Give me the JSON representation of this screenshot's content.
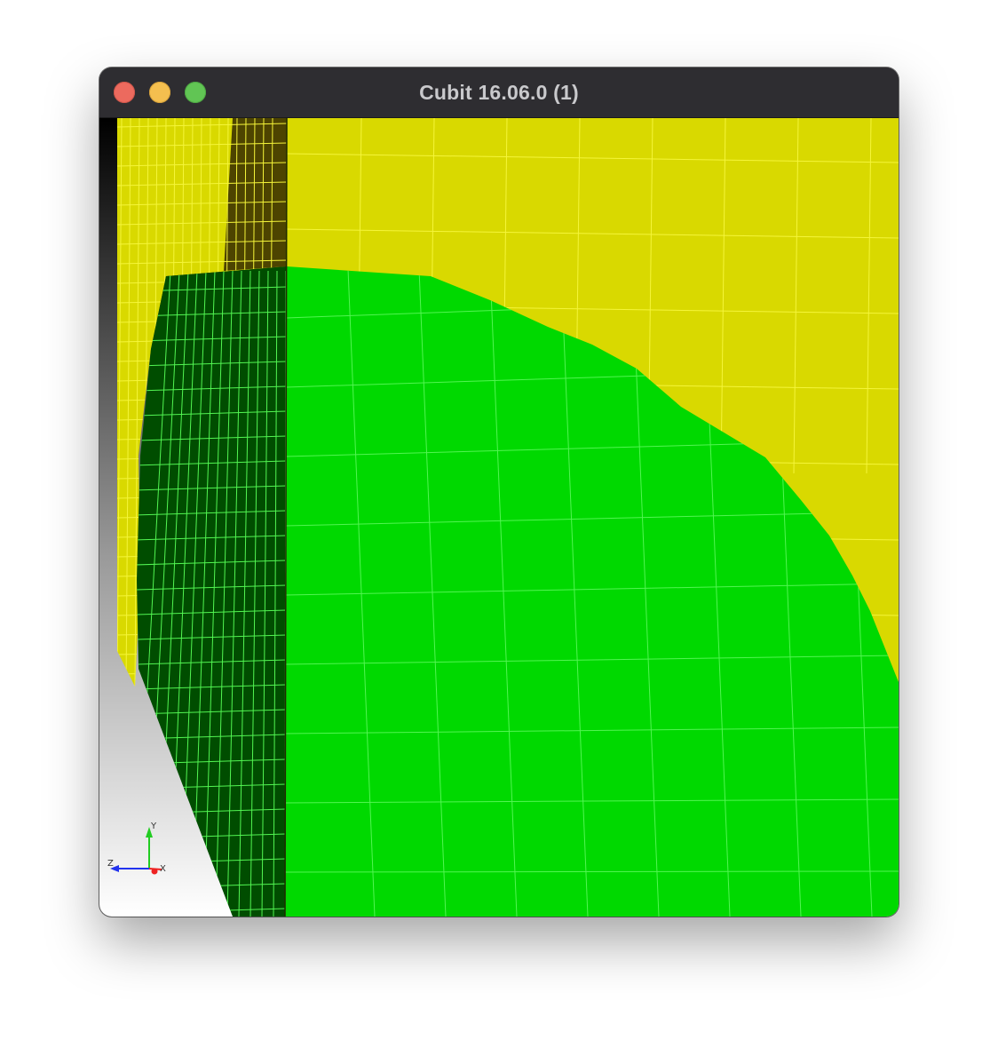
{
  "window": {
    "title": "Cubit 16.06.0 (1)"
  },
  "viewport": {
    "background_top": "#000000",
    "background_bottom": "#ffffff",
    "colors": {
      "yellow_volume": "#d9d900",
      "yellow_volume_shadow": "#4d4400",
      "yellow_mesh_lines": "#f5f53a",
      "green_volume": "#00d900",
      "green_volume_shadow": "#004d00",
      "green_mesh_lines": "#52f552"
    }
  },
  "triad": {
    "y_label": "Y",
    "z_label": "Z",
    "x_label": "X",
    "y_color": "#22cc22",
    "z_color": "#2233ee",
    "x_color": "#ee2222"
  }
}
